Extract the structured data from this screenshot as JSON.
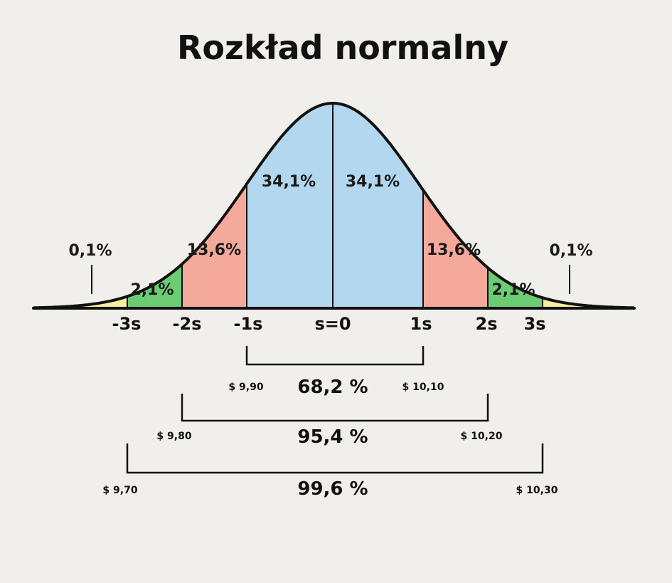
{
  "title": "Rozkład normalny",
  "colors": {
    "center": "#b4d7f0",
    "one_two": "#f4a99b",
    "two_three": "#6bcc74",
    "tail": "#f7ef9f",
    "outline": "#111111",
    "background": "#f1efeb"
  },
  "segment_labels": {
    "center_left": "34,1%",
    "center_right": "34,1%",
    "mid_left": "13,6%",
    "mid_right": "13,6%",
    "outer_left": "2,1%",
    "outer_right": "2,1%",
    "tail_left": "0,1%",
    "tail_right": "0,1%"
  },
  "axis_ticks": [
    "-3s",
    "-2s",
    "-1s",
    "s=0",
    "1s",
    "2s",
    "3s"
  ],
  "ranges": [
    {
      "coverage": "68,2 %",
      "low": "$ 9,90",
      "high": "$ 10,10"
    },
    {
      "coverage": "95,4 %",
      "low": "$ 9,80",
      "high": "$ 10,20"
    },
    {
      "coverage": "99,6 %",
      "low": "$ 9,70",
      "high": "$ 10,30"
    }
  ]
}
